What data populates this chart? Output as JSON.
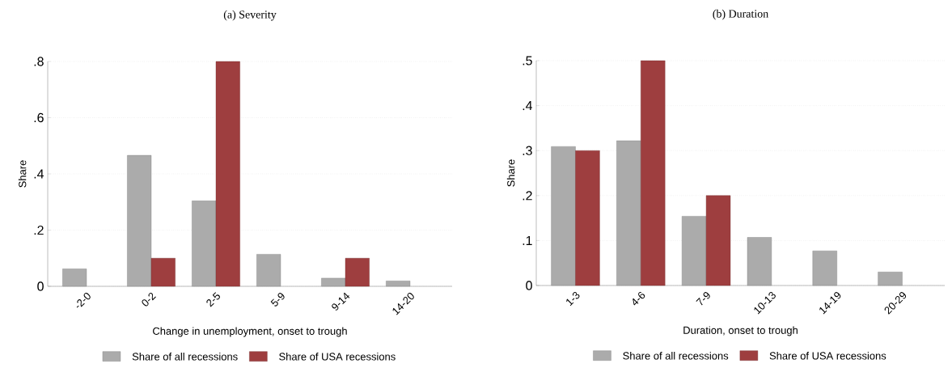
{
  "chart_data": [
    {
      "type": "bar",
      "title": "(a) Severity",
      "xlabel": "Change in unemployment, onset to trough",
      "ylabel": "Share",
      "categories": [
        "-2-0",
        "0-2",
        "2-5",
        "5-9",
        "9-14",
        "14-20"
      ],
      "series": [
        {
          "name": "Share of all recessions",
          "color": "#ababab",
          "values": [
            0.062,
            0.466,
            0.304,
            0.114,
            0.029,
            0.019
          ]
        },
        {
          "name": "Share of USA recessions",
          "color": "#9e3e3f",
          "values": [
            null,
            0.1,
            0.8,
            null,
            0.1,
            null
          ]
        }
      ],
      "ylim": [
        0,
        0.8
      ],
      "yticks": [
        0,
        {
          "value": 0.2,
          "label": ".2"
        },
        {
          "value": 0.4,
          "label": ".4"
        },
        {
          "value": 0.6,
          "label": ".6"
        },
        {
          "value": 0.8,
          "label": ".8"
        }
      ],
      "grid": "y",
      "legend": "bottom"
    },
    {
      "type": "bar",
      "title": "(b) Duration",
      "xlabel": "Duration, onset to trough",
      "ylabel": "Share",
      "categories": [
        "1-3",
        "4-6",
        "7-9",
        "10-13",
        "14-19",
        "20-29"
      ],
      "series": [
        {
          "name": "Share of all recessions",
          "color": "#ababab",
          "values": [
            0.309,
            0.322,
            0.154,
            0.107,
            0.077,
            0.03
          ]
        },
        {
          "name": "Share of USA recessions",
          "color": "#9e3e3f",
          "values": [
            0.3,
            0.5,
            0.2,
            null,
            null,
            null
          ]
        }
      ],
      "ylim": [
        0,
        0.5
      ],
      "yticks": [
        0,
        {
          "value": 0.1,
          "label": ".1"
        },
        {
          "value": 0.2,
          "label": ".2"
        },
        {
          "value": 0.3,
          "label": ".3"
        },
        {
          "value": 0.4,
          "label": ".4"
        },
        {
          "value": 0.5,
          "label": ".5"
        }
      ],
      "grid": "y",
      "legend": "bottom"
    }
  ]
}
